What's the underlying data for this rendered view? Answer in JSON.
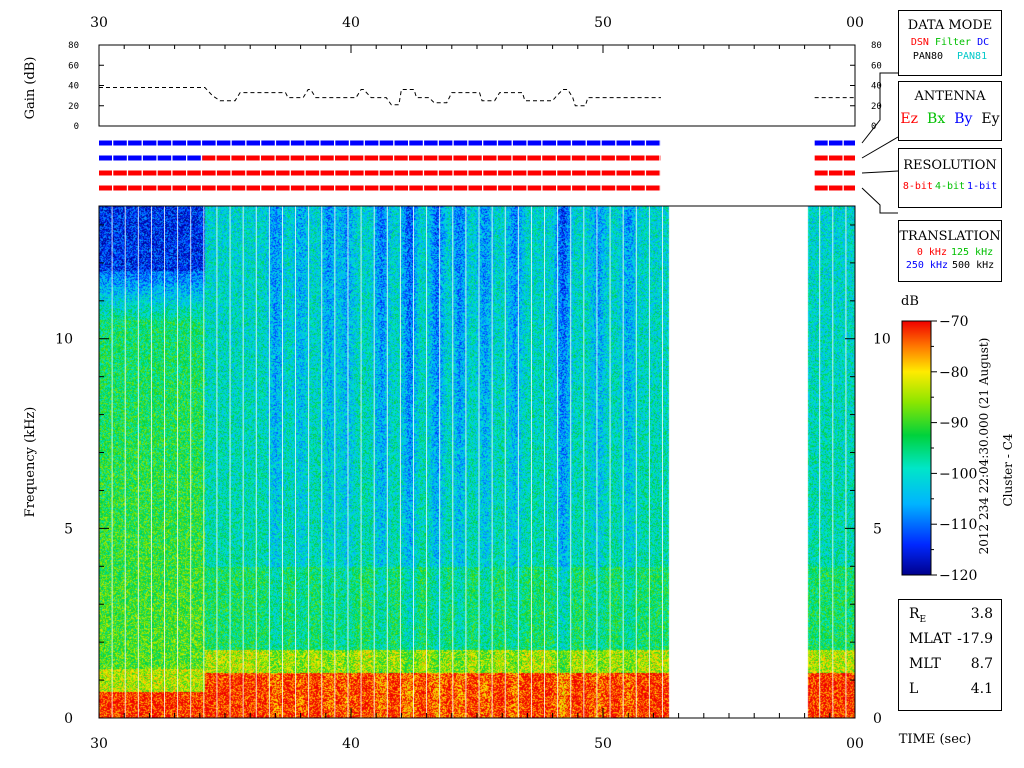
{
  "chart_data": {
    "type": "heatmap",
    "title": "",
    "instrument_label": "Cluster - C4",
    "date_label": "2012 234 22:04:30.000 (21 August)",
    "time_axis": {
      "label": "TIME (sec)",
      "ticks": [
        "30",
        "40",
        "50",
        "00"
      ],
      "range_sec": [
        30,
        60
      ]
    },
    "freq_axis": {
      "label": "Frequency (kHz)",
      "ticks": [
        0,
        5,
        10
      ],
      "range_khz": [
        0,
        13.5
      ]
    },
    "gain_axis": {
      "label": "Gain (dB)",
      "ticks": [
        0,
        20,
        40,
        60,
        80
      ],
      "range_db": [
        0,
        80
      ]
    },
    "colorbar": {
      "unit": "dB",
      "ticks": [
        -70,
        -80,
        -90,
        -100,
        -110,
        -120
      ],
      "range_db": [
        -120,
        -70
      ]
    },
    "data_gap_sec": [
      52.6,
      58.1
    ],
    "gain_series": [
      {
        "x": 30,
        "y": 38
      },
      {
        "x": 34.2,
        "y": 38
      },
      {
        "x": 34.5,
        "y": 30
      },
      {
        "x": 34.8,
        "y": 25
      },
      {
        "x": 35.4,
        "y": 25
      },
      {
        "x": 35.6,
        "y": 33
      },
      {
        "x": 37.4,
        "y": 33
      },
      {
        "x": 37.5,
        "y": 28
      },
      {
        "x": 38.1,
        "y": 28
      },
      {
        "x": 38.3,
        "y": 36
      },
      {
        "x": 38.4,
        "y": 36
      },
      {
        "x": 38.6,
        "y": 28
      },
      {
        "x": 40.2,
        "y": 28
      },
      {
        "x": 40.4,
        "y": 36
      },
      {
        "x": 40.5,
        "y": 36
      },
      {
        "x": 40.8,
        "y": 28
      },
      {
        "x": 41.4,
        "y": 28
      },
      {
        "x": 41.6,
        "y": 21
      },
      {
        "x": 41.9,
        "y": 21
      },
      {
        "x": 42.0,
        "y": 36
      },
      {
        "x": 42.5,
        "y": 36
      },
      {
        "x": 42.6,
        "y": 28
      },
      {
        "x": 43.1,
        "y": 28
      },
      {
        "x": 43.3,
        "y": 23
      },
      {
        "x": 43.8,
        "y": 23
      },
      {
        "x": 44.0,
        "y": 33
      },
      {
        "x": 45.1,
        "y": 33
      },
      {
        "x": 45.2,
        "y": 25
      },
      {
        "x": 45.7,
        "y": 25
      },
      {
        "x": 45.9,
        "y": 33
      },
      {
        "x": 46.8,
        "y": 33
      },
      {
        "x": 46.9,
        "y": 25
      },
      {
        "x": 48.0,
        "y": 25
      },
      {
        "x": 48.1,
        "y": 28
      },
      {
        "x": 48.4,
        "y": 36
      },
      {
        "x": 48.6,
        "y": 36
      },
      {
        "x": 48.8,
        "y": 28
      },
      {
        "x": 48.9,
        "y": 20
      },
      {
        "x": 49.3,
        "y": 20
      },
      {
        "x": 49.4,
        "y": 28
      },
      {
        "x": 52.3,
        "y": 28
      }
    ],
    "gain_series_after_gap": [
      {
        "x": 58.4,
        "y": 28
      },
      {
        "x": 60,
        "y": 28
      }
    ],
    "mode_rows": [
      {
        "segments": [
          {
            "x0": 30,
            "x1": 52.3,
            "color": "#0000ff"
          },
          {
            "x0": 58.4,
            "x1": 60,
            "color": "#0000ff"
          }
        ]
      },
      {
        "segments": [
          {
            "x0": 30,
            "x1": 34.1,
            "color": "#0000ff"
          },
          {
            "x0": 34.1,
            "x1": 52.3,
            "color": "#ff0000"
          },
          {
            "x0": 58.4,
            "x1": 60,
            "color": "#ff0000"
          }
        ]
      },
      {
        "segments": [
          {
            "x0": 30,
            "x1": 52.3,
            "color": "#ff0000"
          },
          {
            "x0": 58.4,
            "x1": 60,
            "color": "#ff0000"
          }
        ]
      },
      {
        "segments": [
          {
            "x0": 30,
            "x1": 52.3,
            "color": "#ff0000"
          },
          {
            "x0": 58.4,
            "x1": 60,
            "color": "#ff0000"
          }
        ]
      }
    ]
  },
  "legend": {
    "data_mode": {
      "title": "DATA MODE",
      "items": [
        {
          "label": "DSN",
          "color": "#ff0000"
        },
        {
          "label": "Filter",
          "color": "#00c000"
        },
        {
          "label": "DC",
          "color": "#0000ff"
        },
        {
          "label": "PAN80",
          "color": "#000000"
        },
        {
          "label": "PAN81",
          "color": "#00c8c8"
        }
      ]
    },
    "antenna": {
      "title": "ANTENNA",
      "items": [
        {
          "label": "Ez",
          "color": "#ff0000"
        },
        {
          "label": "Bx",
          "color": "#00c000"
        },
        {
          "label": "By",
          "color": "#0000ff"
        },
        {
          "label": "Ey",
          "color": "#000000"
        }
      ]
    },
    "resolution": {
      "title": "RESOLUTION",
      "items": [
        {
          "label": "8-bit",
          "color": "#ff0000"
        },
        {
          "label": "4-bit",
          "color": "#00c000"
        },
        {
          "label": "1-bit",
          "color": "#0000ff"
        }
      ]
    },
    "translation": {
      "title": "TRANSLATION",
      "items": [
        {
          "label": "0 kHz",
          "color": "#ff0000"
        },
        {
          "label": "125 kHz",
          "color": "#00c000"
        },
        {
          "label": "250 kHz",
          "color": "#0000ff"
        },
        {
          "label": "500 kHz",
          "color": "#000000"
        }
      ]
    }
  },
  "orbit": {
    "re_label": "R",
    "re_sub": "E",
    "re_value": "3.8",
    "mlat_label": "MLAT",
    "mlat_value": "-17.9",
    "mlt_label": "MLT",
    "mlt_value": "8.7",
    "l_label": "L",
    "l_value": "4.1"
  }
}
